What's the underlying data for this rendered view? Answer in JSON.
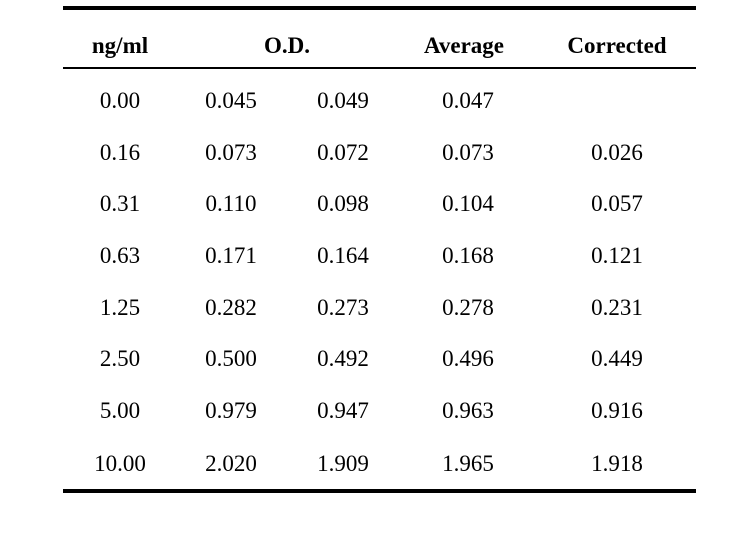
{
  "table": {
    "headers": {
      "conc": "ng/ml",
      "od": "O.D.",
      "average": "Average",
      "corrected": "Corrected"
    },
    "rows": [
      {
        "conc": "0.00",
        "od1": "0.045",
        "od2": "0.049",
        "average": "0.047",
        "corrected": ""
      },
      {
        "conc": "0.16",
        "od1": "0.073",
        "od2": "0.072",
        "average": "0.073",
        "corrected": "0.026"
      },
      {
        "conc": "0.31",
        "od1": "0.110",
        "od2": "0.098",
        "average": "0.104",
        "corrected": "0.057"
      },
      {
        "conc": "0.63",
        "od1": "0.171",
        "od2": "0.164",
        "average": "0.168",
        "corrected": "0.121"
      },
      {
        "conc": "1.25",
        "od1": "0.282",
        "od2": "0.273",
        "average": "0.278",
        "corrected": "0.231"
      },
      {
        "conc": "2.50",
        "od1": "0.500",
        "od2": "0.492",
        "average": "0.496",
        "corrected": "0.449"
      },
      {
        "conc": "5.00",
        "od1": "0.979",
        "od2": "0.947",
        "average": "0.963",
        "corrected": "0.916"
      },
      {
        "conc": "10.00",
        "od1": "2.020",
        "od2": "1.909",
        "average": "1.965",
        "corrected": "1.918"
      }
    ]
  }
}
